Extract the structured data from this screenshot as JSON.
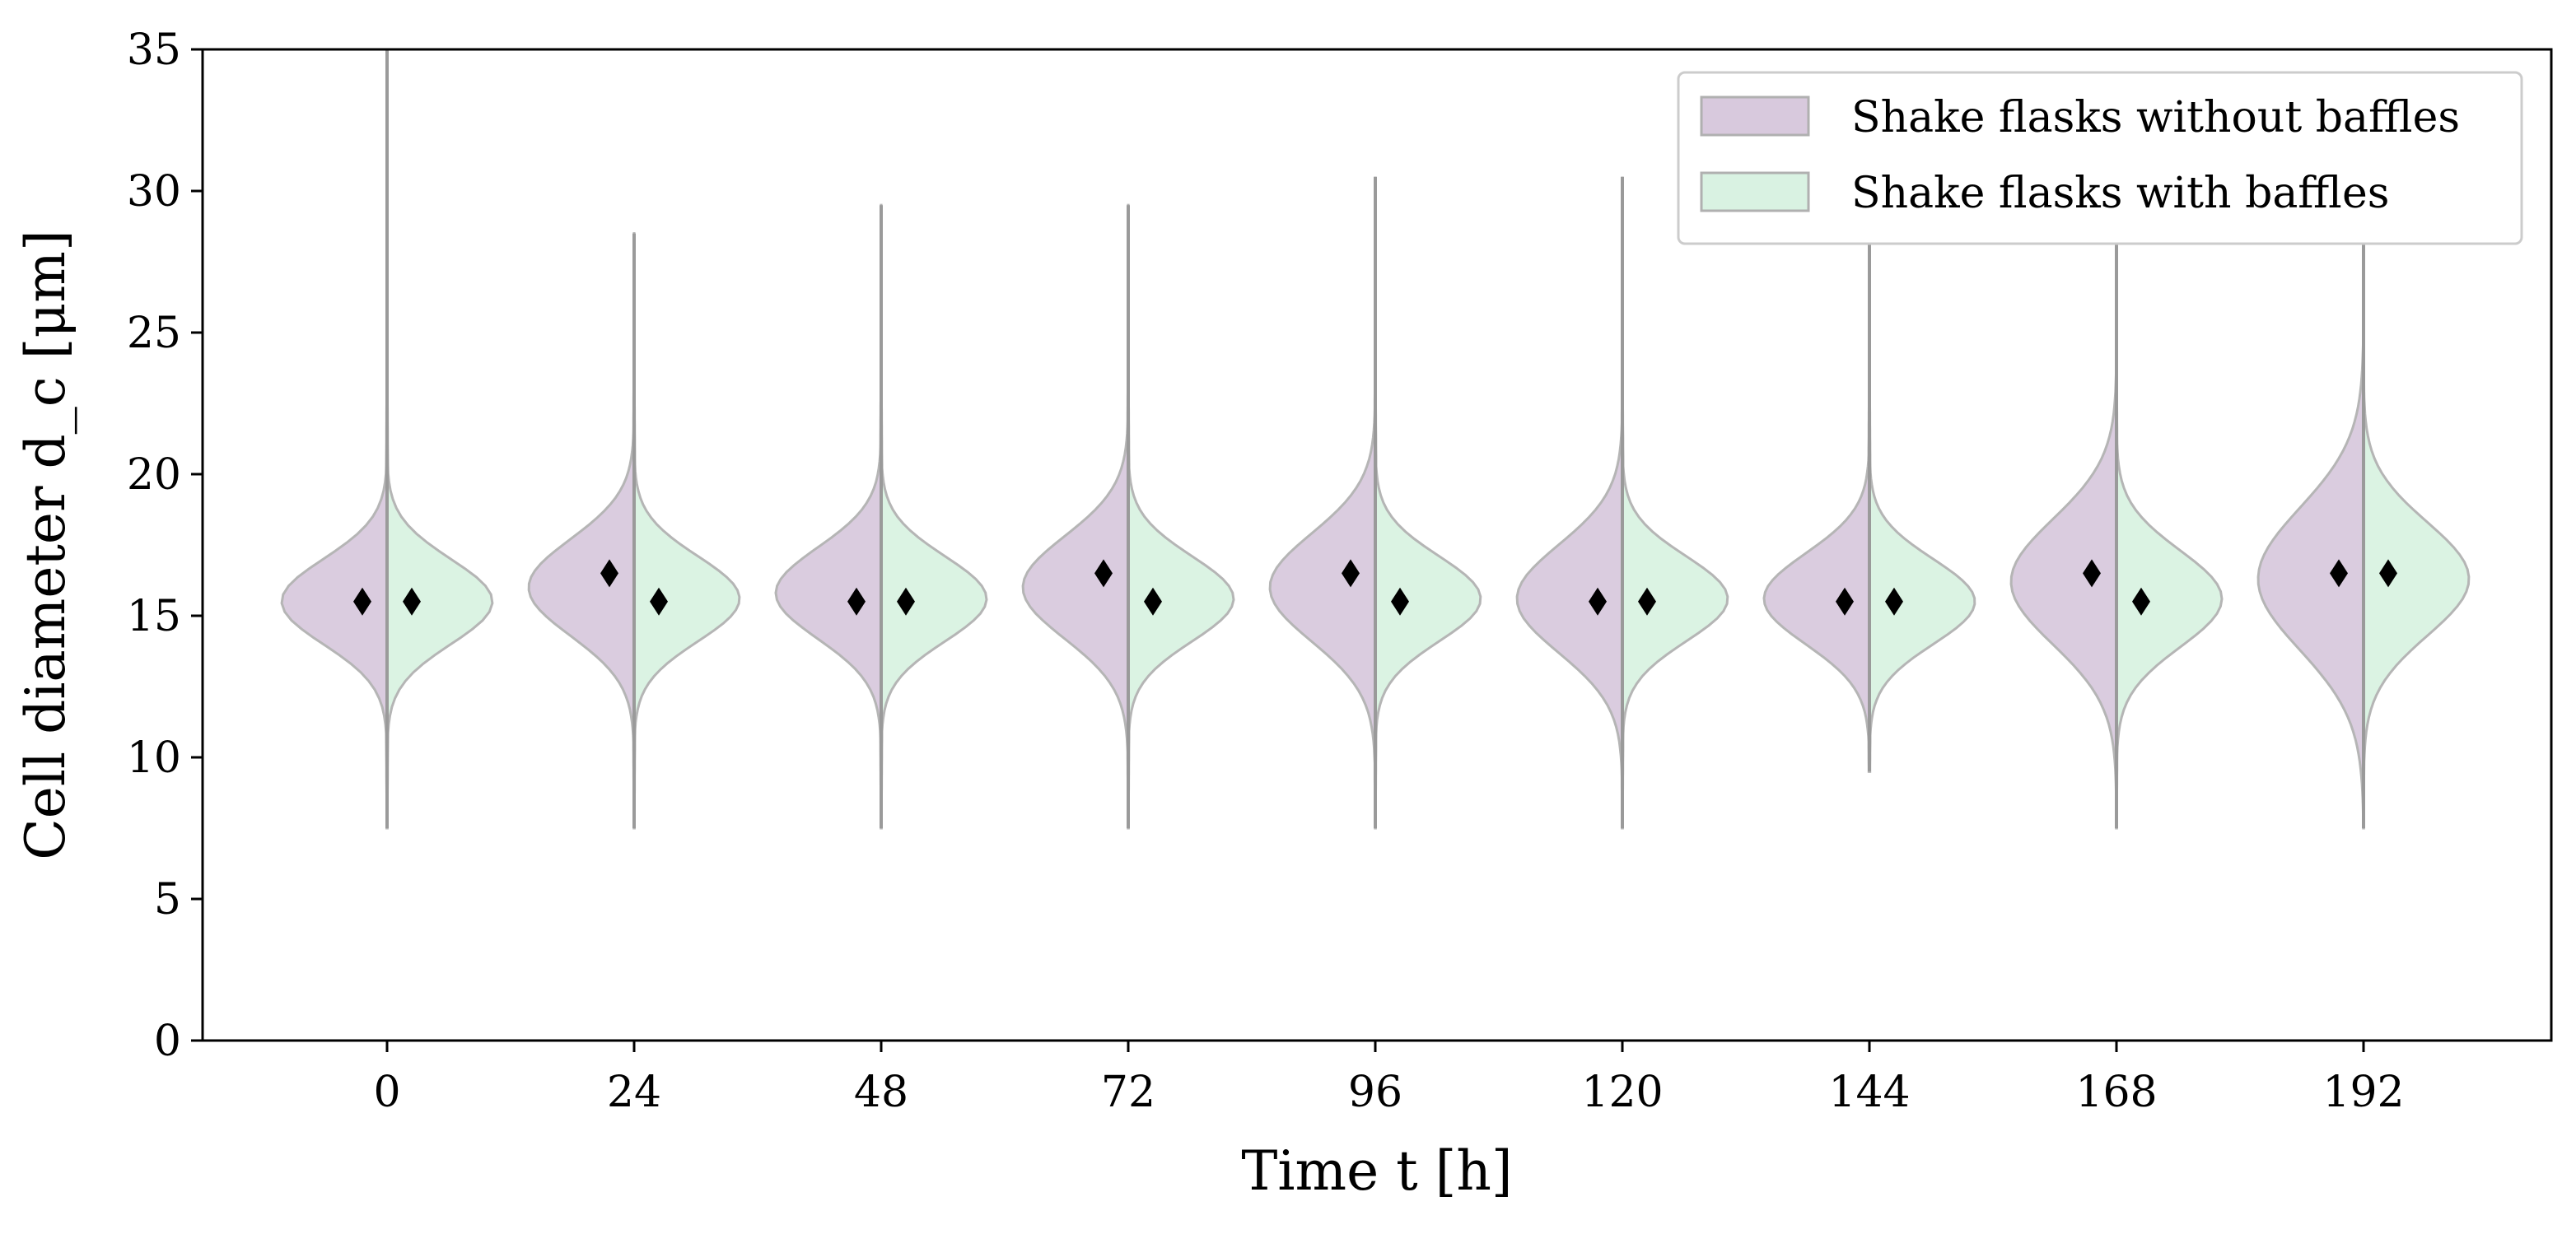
{
  "chart_data": {
    "type": "violin",
    "title": "",
    "xlabel": "Time t [h]",
    "ylabel": "Cell diameter d_c [μm]",
    "ylim": [
      0,
      35
    ],
    "yticks": [
      "0",
      "5",
      "10",
      "15",
      "20",
      "25",
      "30",
      "35"
    ],
    "categories": [
      "0",
      "24",
      "48",
      "72",
      "96",
      "120",
      "144",
      "168",
      "192"
    ],
    "legend_position": "top-right",
    "colors": {
      "without": "#d8c9dd",
      "with": "#d9f2e2",
      "line": "#9a9a9a",
      "mean": "#000000"
    },
    "series": [
      {
        "name": "Shake flasks without baffles",
        "side": "left",
        "means": [
          15.5,
          16.5,
          15.5,
          16.5,
          16.5,
          15.5,
          15.5,
          16.5,
          16.5
        ],
        "centers": [
          15.5,
          16.0,
          15.8,
          16.0,
          16.0,
          15.6,
          15.6,
          16.2,
          16.3
        ],
        "widths": [
          1.5,
          1.7,
          1.6,
          1.8,
          1.9,
          1.9,
          1.6,
          2.2,
          2.5
        ],
        "max_width": [
          0.55,
          0.55,
          0.55,
          0.55,
          0.55,
          0.55,
          0.55,
          0.55,
          0.55
        ],
        "mins": [
          7.5,
          7.5,
          7.5,
          7.5,
          7.5,
          7.5,
          9.5,
          7.5,
          7.5
        ],
        "maxs": [
          35.0,
          28.5,
          29.5,
          29.5,
          30.5,
          30.5,
          28.5,
          31.0,
          31.0
        ]
      },
      {
        "name": "Shake flasks with baffles",
        "side": "right",
        "means": [
          15.5,
          15.5,
          15.5,
          15.5,
          15.5,
          15.5,
          15.5,
          15.5,
          16.5
        ],
        "centers": [
          15.5,
          15.6,
          15.6,
          15.6,
          15.6,
          15.6,
          15.5,
          15.6,
          16.3
        ],
        "widths": [
          1.5,
          1.5,
          1.5,
          1.5,
          1.5,
          1.5,
          1.5,
          1.7,
          2.0
        ],
        "max_width": [
          0.55,
          0.55,
          0.55,
          0.55,
          0.55,
          0.55,
          0.55,
          0.55,
          0.55
        ],
        "mins": [
          7.5,
          7.5,
          7.5,
          7.5,
          7.5,
          7.5,
          9.5,
          7.5,
          7.5
        ],
        "maxs": [
          35.0,
          28.5,
          29.5,
          29.5,
          30.5,
          30.5,
          28.5,
          31.0,
          31.0
        ]
      }
    ]
  }
}
